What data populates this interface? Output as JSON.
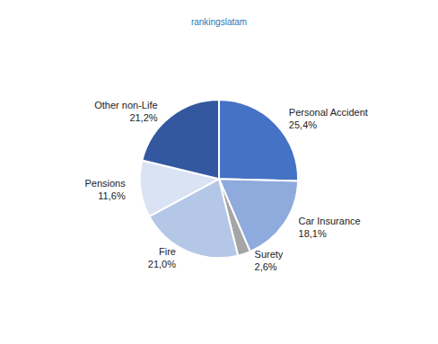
{
  "chart_data": {
    "type": "pie",
    "title": "rankingslatam",
    "categories": [
      "Personal Accident",
      "Car Insurance",
      "Surety",
      "Fire",
      "Pensions",
      "Other non-Life"
    ],
    "values": [
      25.4,
      18.1,
      2.6,
      21.0,
      11.6,
      21.2
    ],
    "value_labels": [
      "25,4%",
      "18,1%",
      "2,6%",
      "21,0%",
      "11,6%",
      "21,2%"
    ],
    "colors": [
      "#4472c4",
      "#8faadc",
      "#a5a5a5",
      "#b4c7e7",
      "#dae3f3",
      "#34589f"
    ],
    "data_labels": true
  }
}
